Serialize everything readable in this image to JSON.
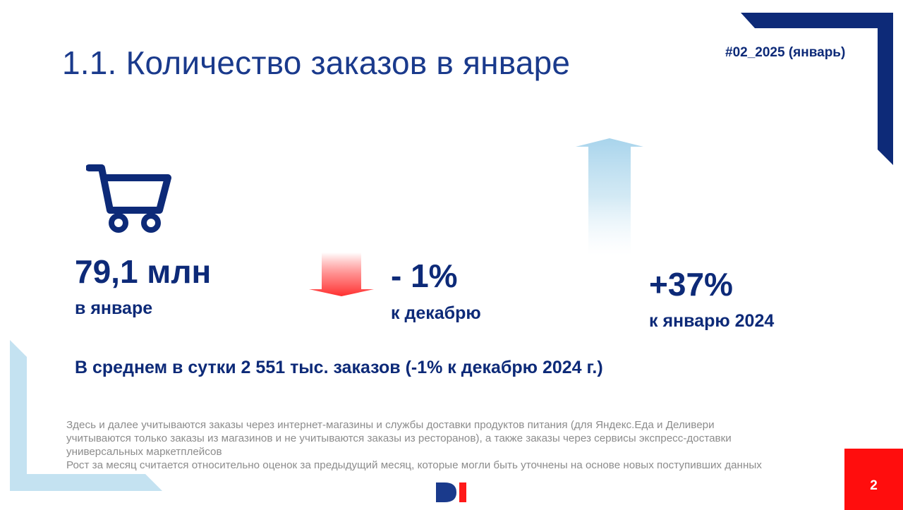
{
  "title": "1.1. Количество заказов в январе",
  "tag": "#02_2025 (январь)",
  "kpis": [
    {
      "value": "79,1 млн",
      "caption": "в январе",
      "icon": "cart-icon"
    },
    {
      "value": "- 1%",
      "caption": "к декабрю",
      "icon": "arrow-down-icon",
      "color": "#ff3b3b"
    },
    {
      "value": "+37%",
      "caption": "к январю 2024",
      "icon": "arrow-up-icon",
      "color": "#a8d4ec"
    }
  ],
  "daily_summary": "В среднем в сутки 2 551 тыс. заказов (-1% к декабрю 2024 г.)",
  "notes": [
    "Здесь и далее учитываются заказы через интернет-магазины и службы доставки продуктов питания (для Яндекс.Еда и Деливери",
    "учитываются только заказы из магазинов и не учитываются заказы из ресторанов), а также заказы через сервисы экспресс-доставки",
    "универсальных маркетплейсов",
    "Рост за месяц считается относительно оценок за предыдущий месяц, которые могли быть уточнены на основе новых поступивших данных"
  ],
  "page_number": "2",
  "colors": {
    "primary": "#0d2a78",
    "accent_red": "#ff0d0d",
    "light_blue": "#c4e2f1"
  }
}
